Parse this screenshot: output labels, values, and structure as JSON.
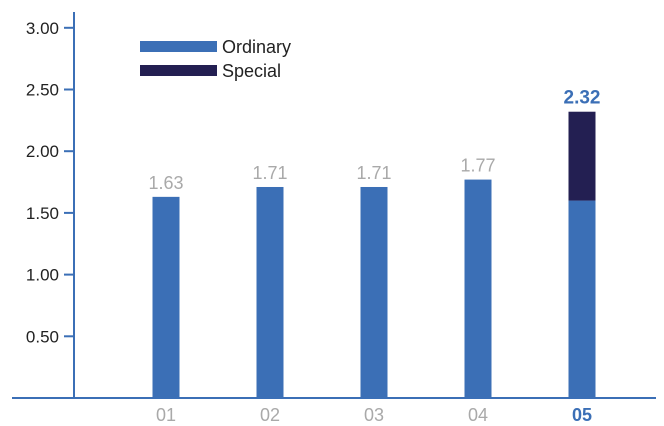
{
  "chart_data": {
    "type": "bar",
    "stacked": true,
    "categories": [
      "01",
      "02",
      "03",
      "04",
      "05"
    ],
    "highlight_category": "05",
    "series": [
      {
        "name": "Ordinary",
        "values": [
          1.63,
          1.71,
          1.71,
          1.77,
          1.6
        ]
      },
      {
        "name": "Special",
        "values": [
          0,
          0,
          0,
          0,
          0.72
        ]
      }
    ],
    "totals": [
      1.63,
      1.71,
      1.71,
      1.77,
      2.32
    ],
    "total_labels": [
      "1.63",
      "1.71",
      "1.71",
      "1.77",
      "2.32"
    ],
    "y_ticks": [
      "0.50",
      "1.00",
      "1.50",
      "2.00",
      "2.50",
      "3.00"
    ],
    "ylim": [
      0,
      3.2
    ],
    "grid": false,
    "legend_position": "top-left",
    "title": "",
    "xlabel": "",
    "ylabel": "",
    "colors": {
      "ordinary": "#3b6fb6",
      "special": "#231f52",
      "axis": "#3b6fb6",
      "muted_label": "#a9a9a9",
      "highlight_label": "#3b6fb6",
      "tick_label": "#222222"
    }
  }
}
